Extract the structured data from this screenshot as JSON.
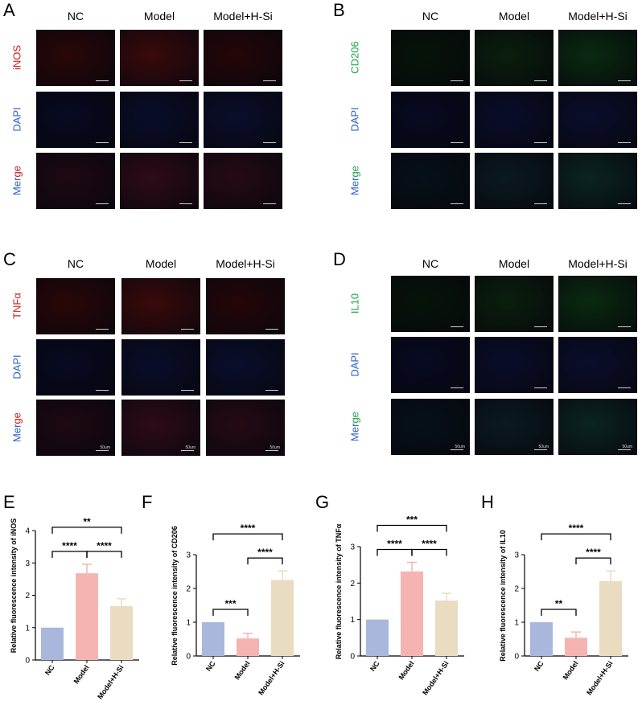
{
  "colors": {
    "red_stain": "#d41a1a",
    "green_stain": "#1aa54a",
    "blue_stain": "#2a5fc8",
    "bar_nc": "#aab7dc",
    "bar_model": "#f5b4b1",
    "bar_hsi": "#e9dcc0"
  },
  "panels": {
    "A": {
      "letter": "A",
      "columns": [
        "NC",
        "Model",
        "Model+H-Si"
      ],
      "rows": [
        {
          "label": "iNOS",
          "color": "red"
        },
        {
          "label": "DAPI",
          "color": "blue"
        },
        {
          "label": "Merge",
          "color": "merge-red"
        }
      ]
    },
    "B": {
      "letter": "B",
      "columns": [
        "NC",
        "Model",
        "Model+H-Si"
      ],
      "rows": [
        {
          "label": "CD206",
          "color": "green"
        },
        {
          "label": "DAPI",
          "color": "blue"
        },
        {
          "label": "Merge",
          "color": "merge-green"
        }
      ]
    },
    "C": {
      "letter": "C",
      "columns": [
        "NC",
        "Model",
        "Model+H-Si"
      ],
      "rows": [
        {
          "label": "TNFα",
          "color": "red"
        },
        {
          "label": "DAPI",
          "color": "blue"
        },
        {
          "label": "Merge",
          "color": "merge-red"
        }
      ],
      "scale": "50um"
    },
    "D": {
      "letter": "D",
      "columns": [
        "NC",
        "Model",
        "Model+H-Si"
      ],
      "rows": [
        {
          "label": "IL10",
          "color": "green"
        },
        {
          "label": "DAPI",
          "color": "blue"
        },
        {
          "label": "Merge",
          "color": "merge-green"
        }
      ],
      "scale": "50um"
    }
  },
  "merge_word": {
    "pre": "Mer",
    "suf": "ge"
  },
  "chart_data": [
    {
      "letter": "E",
      "type": "bar",
      "ylabel": "Relative fluorescence intensity of iNOS",
      "categories": [
        "NC",
        "Model",
        "Model+H-Si"
      ],
      "values": [
        1.0,
        2.68,
        1.67
      ],
      "errors": [
        0,
        0.28,
        0.22
      ],
      "ylim": [
        0,
        4
      ],
      "yticks": [
        0,
        1,
        2,
        3,
        4
      ],
      "comparisons": [
        {
          "a": 0,
          "b": 1,
          "label": "****"
        },
        {
          "a": 1,
          "b": 2,
          "label": "****"
        },
        {
          "a": 0,
          "b": 2,
          "label": "**"
        }
      ]
    },
    {
      "letter": "F",
      "type": "bar",
      "ylabel": "Relative fluorescence intensity of CD206",
      "categories": [
        "NC",
        "Model",
        "Model+H-Si"
      ],
      "values": [
        1.0,
        0.52,
        2.25
      ],
      "errors": [
        0,
        0.15,
        0.27
      ],
      "ylim": [
        0,
        3
      ],
      "yticks": [
        0,
        1,
        2,
        3
      ],
      "comparisons": [
        {
          "a": 0,
          "b": 1,
          "label": "***"
        },
        {
          "a": 1,
          "b": 2,
          "label": "****"
        },
        {
          "a": 0,
          "b": 2,
          "label": "****"
        }
      ]
    },
    {
      "letter": "G",
      "type": "bar",
      "ylabel": "Relative fluorescence intensity of TNFα",
      "categories": [
        "NC",
        "Model",
        "Model+H-Si"
      ],
      "values": [
        1.0,
        2.32,
        1.52
      ],
      "errors": [
        0,
        0.25,
        0.2
      ],
      "ylim": [
        0,
        3
      ],
      "yticks": [
        0,
        1,
        2,
        3
      ],
      "comparisons": [
        {
          "a": 0,
          "b": 1,
          "label": "****"
        },
        {
          "a": 1,
          "b": 2,
          "label": "****"
        },
        {
          "a": 0,
          "b": 2,
          "label": "***"
        }
      ]
    },
    {
      "letter": "H",
      "type": "bar",
      "ylabel": "Relative fluorescence intensity of IL10",
      "categories": [
        "NC",
        "Model",
        "Model+H-Si"
      ],
      "values": [
        1.0,
        0.54,
        2.22
      ],
      "errors": [
        0,
        0.17,
        0.3
      ],
      "ylim": [
        0,
        3
      ],
      "yticks": [
        0,
        1,
        2,
        3
      ],
      "comparisons": [
        {
          "a": 0,
          "b": 1,
          "label": "**"
        },
        {
          "a": 1,
          "b": 2,
          "label": "****"
        },
        {
          "a": 0,
          "b": 2,
          "label": "****"
        }
      ]
    }
  ]
}
